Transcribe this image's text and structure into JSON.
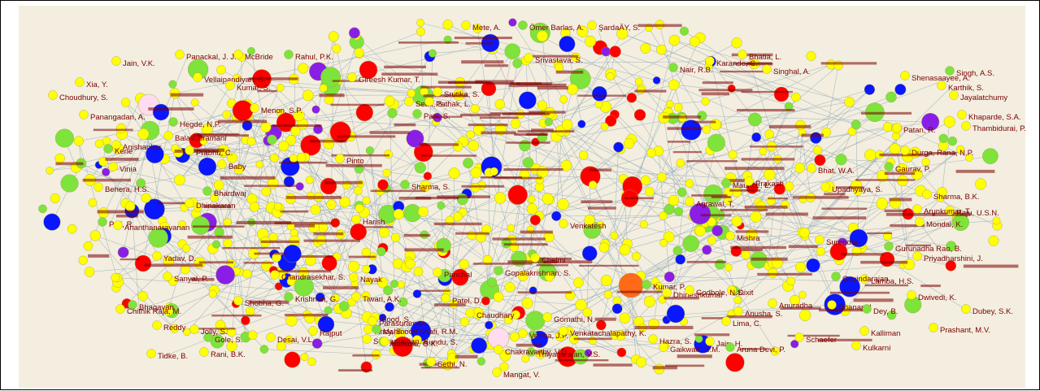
{
  "colors": {
    "background": "#f3eedf",
    "edge": "#8ea6b6",
    "label": "#7a0000",
    "yellow": "#ffff00",
    "green": "#7ee33a",
    "red": "#ff0000",
    "blue": "#0a16ff",
    "purple": "#8a1ee6",
    "orange": "#ff6a19",
    "pink": "#ffdcef"
  },
  "named_nodes": [
    {
      "label": "Panackal, J. J."
    },
    {
      "label": "McBride"
    },
    {
      "label": "Rahul, P.K."
    },
    {
      "label": "Jain, V.K."
    },
    {
      "label": "Xia, Y."
    },
    {
      "label": "Choudhury, S."
    },
    {
      "label": "Panangadan, A."
    },
    {
      "label": "Hegde, N.P."
    },
    {
      "label": "Vellaipandiyan, S."
    },
    {
      "label": "Kumar, S."
    },
    {
      "label": "Menon, S.P."
    },
    {
      "label": "Mete, A."
    },
    {
      "label": "Ömer Barlas, A."
    },
    {
      "label": "ŞardaÄY, S."
    },
    {
      "label": "Srivastava, S."
    },
    {
      "label": "Bhatia, L."
    },
    {
      "label": "Karande, C."
    },
    {
      "label": "Nair, R.B."
    },
    {
      "label": "Singhal, A."
    },
    {
      "label": "Shenasaayee, A."
    },
    {
      "label": "Karthik, S."
    },
    {
      "label": "Jayalatchumy"
    },
    {
      "label": "Singh, A.S."
    },
    {
      "label": "Khaparde, S.A."
    },
    {
      "label": "Thambidurai, P."
    },
    {
      "label": "Balasubramani"
    },
    {
      "label": "Anishankar"
    },
    {
      "label": "Kene"
    },
    {
      "label": "Prabhu, C."
    },
    {
      "label": "Vinia"
    },
    {
      "label": "Baby"
    },
    {
      "label": "Behera, H.S."
    },
    {
      "label": "Pati, R."
    },
    {
      "label": "Dhinakaran"
    },
    {
      "label": "Ananthanarayanan"
    },
    {
      "label": "Yadav, D."
    },
    {
      "label": "Sanyal, P."
    },
    {
      "label": "Bhagavan"
    },
    {
      "label": "Chithik Raja, M."
    },
    {
      "label": "Reddy"
    },
    {
      "label": "Tidke, B."
    },
    {
      "label": "Rani, B.K."
    },
    {
      "label": "Gole, S."
    },
    {
      "label": "Jolly, S."
    },
    {
      "label": "Desai, V.L."
    },
    {
      "label": "Sethi, N."
    },
    {
      "label": "Mangat, V."
    },
    {
      "label": "Thiyagarajan, V.S."
    },
    {
      "label": "Gaikwad, S.M."
    },
    {
      "label": "Chakravarthy, V.D."
    },
    {
      "label": "Kundu, S."
    },
    {
      "label": "Subramanian, S."
    },
    {
      "label": "Archana, G.K."
    },
    {
      "label": "Verma, J.P."
    },
    {
      "label": "Venkatachalapathy, K."
    },
    {
      "label": "Hazra, S."
    },
    {
      "label": "Jain, H."
    },
    {
      "label": "Kumar, P."
    },
    {
      "label": "Dhineshkumar"
    },
    {
      "label": "Dixit"
    },
    {
      "label": "Anuradha"
    },
    {
      "label": "Dhanapal"
    },
    {
      "label": "Dey, B."
    },
    {
      "label": "Dwivedi, K."
    },
    {
      "label": "Dubey, S.K."
    },
    {
      "label": "Prashant, M.V."
    },
    {
      "label": "Lamba, H.S."
    },
    {
      "label": "Govindarajan"
    },
    {
      "label": "Raju, U.S.N."
    },
    {
      "label": "Arunkumar, T."
    },
    {
      "label": "Sharma, B.K."
    },
    {
      "label": "Upadhyaya, S."
    },
    {
      "label": "Gaurav, P."
    },
    {
      "label": "Durga, Rana, N.P."
    },
    {
      "label": "Patan, R."
    },
    {
      "label": "Mondal, K."
    },
    {
      "label": "Priyadharshini, J."
    },
    {
      "label": "Gurunadha Rao, B."
    },
    {
      "label": "Anusha, S."
    },
    {
      "label": "Godbole, N.S."
    },
    {
      "label": "Gomathi, N."
    },
    {
      "label": "Chaudhary"
    },
    {
      "label": "Gopalakrishnan, S."
    },
    {
      "label": "Panchal"
    },
    {
      "label": "Tiwari, A.K."
    },
    {
      "label": "Patel, D."
    },
    {
      "label": "Sethi, S."
    },
    {
      "label": "Patil, S."
    },
    {
      "label": "Pathak, L."
    },
    {
      "label": "Gireesh Kumar, T."
    },
    {
      "label": "Srutika, S."
    },
    {
      "label": "Pinto"
    },
    {
      "label": "Sharma, S."
    },
    {
      "label": "Chelmi"
    },
    {
      "label": "Venkatesh"
    },
    {
      "label": "Agrawal, T."
    },
    {
      "label": "Bhat, W.A."
    },
    {
      "label": "Maurice, L."
    },
    {
      "label": "Prakash"
    },
    {
      "label": "Kaur, A."
    },
    {
      "label": "Rajput"
    },
    {
      "label": "Nayak"
    },
    {
      "label": "Krishnan, G."
    },
    {
      "label": "Chandrasekhar, S."
    },
    {
      "label": "Shobha, G."
    },
    {
      "label": "Sood, S."
    },
    {
      "label": "Ancy, S."
    },
    {
      "label": "Mahmood Shafi, R.M."
    },
    {
      "label": "Parasuraman"
    },
    {
      "label": "Lima, C."
    },
    {
      "label": "Schaefer"
    },
    {
      "label": "Kalliman"
    },
    {
      "label": "Aruna Devi, P."
    },
    {
      "label": "Kulkarni"
    },
    {
      "label": "Surendra"
    },
    {
      "label": "Mishra"
    },
    {
      "label": "Harish"
    },
    {
      "label": "Bhardwaj"
    }
  ]
}
